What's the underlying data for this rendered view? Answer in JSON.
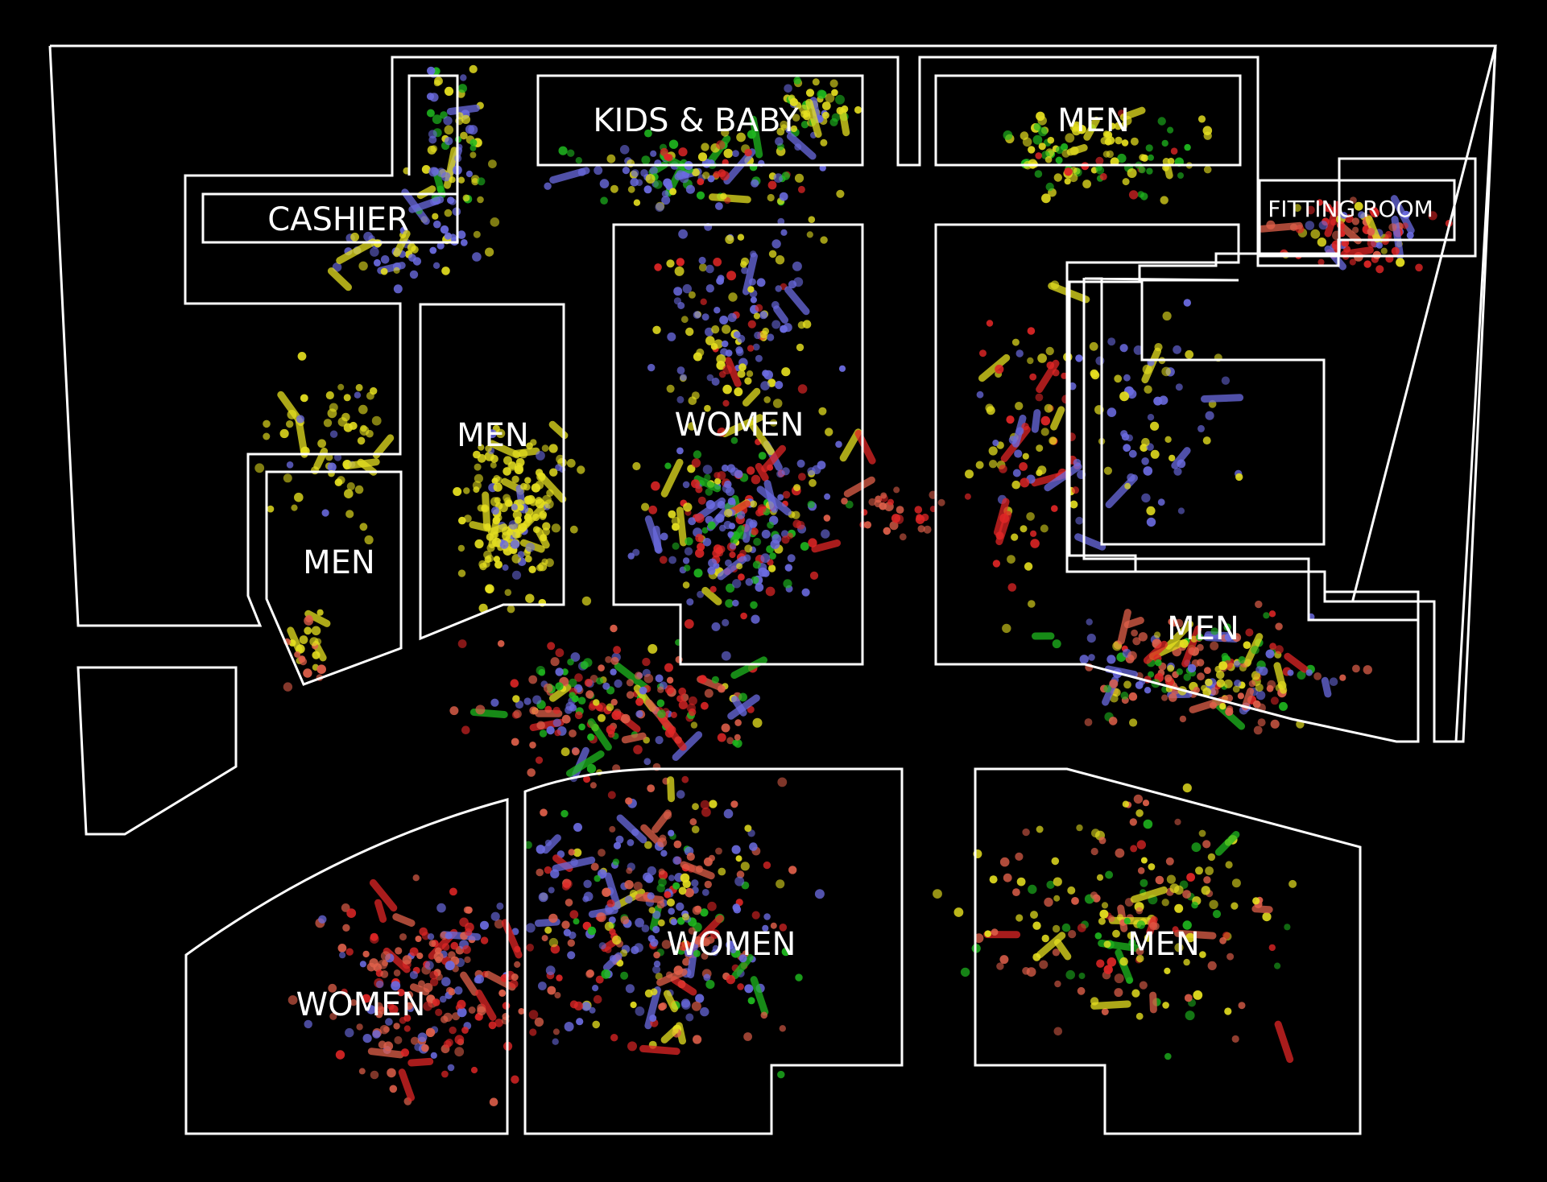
{
  "zones": {
    "cashier": "CASHIER",
    "kids_baby": "KIDS & BABY",
    "men_top": "MEN",
    "fitting_room": "FITTING ROOM",
    "men_center": "MEN",
    "women_center": "WOMEN",
    "men_small": "MEN",
    "men_right": "MEN",
    "women_bottom_left": "WOMEN",
    "women_bottom_mid": "WOMEN",
    "men_bottom_right": "MEN"
  },
  "track_colors": {
    "blue": "#6b6be0",
    "yellow": "#e6e020",
    "red": "#e02626",
    "salmon": "#e0604a",
    "green": "#1fb81f"
  }
}
